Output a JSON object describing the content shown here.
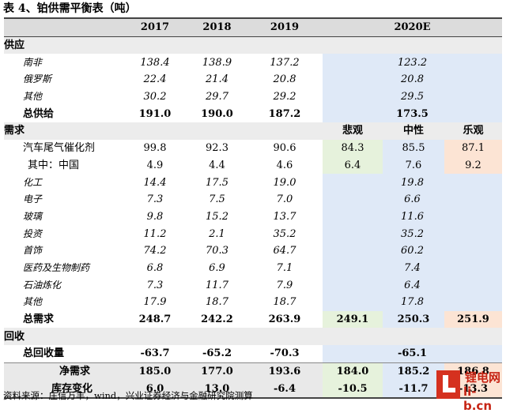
{
  "title": "表 4、铂供需平衡表（吨）",
  "columns": [
    "",
    "2017",
    "2018",
    "2019",
    "2020E"
  ],
  "supply": {
    "header": "供应",
    "rows": [
      {
        "label": "南非",
        "v2017": "138.4",
        "v2018": "138.9",
        "v2019": "137.2",
        "v2020": "123.2"
      },
      {
        "label": "俄罗斯",
        "v2017": "22.4",
        "v2018": "21.4",
        "v2019": "20.8",
        "v2020": "20.8"
      },
      {
        "label": "其他",
        "v2017": "30.2",
        "v2018": "29.7",
        "v2019": "29.2",
        "v2020": "29.5"
      }
    ],
    "total": {
      "label": "总供给",
      "v2017": "191.0",
      "v2018": "190.0",
      "v2019": "187.2",
      "v2020": "173.5"
    }
  },
  "demand": {
    "header": "需求",
    "scenario_labels": {
      "bear": "悲观",
      "neutral": "中性",
      "bull": "乐观"
    },
    "auto": {
      "label": "汽车尾气催化剂",
      "v2017": "99.8",
      "v2018": "92.3",
      "v2019": "90.6",
      "bear": "84.3",
      "neutral": "85.5",
      "bull": "87.1"
    },
    "china": {
      "label": "其中：中国",
      "v2017": "4.9",
      "v2018": "4.4",
      "v2019": "4.6",
      "bear": "6.4",
      "neutral": "7.6",
      "bull": "9.2"
    },
    "rows": [
      {
        "label": "化工",
        "v2017": "14.4",
        "v2018": "17.5",
        "v2019": "19.0",
        "v2020": "19.8"
      },
      {
        "label": "电子",
        "v2017": "7.3",
        "v2018": "7.5",
        "v2019": "7.0",
        "v2020": "6.6"
      },
      {
        "label": "玻璃",
        "v2017": "9.8",
        "v2018": "15.2",
        "v2019": "13.7",
        "v2020": "11.6"
      },
      {
        "label": "投资",
        "v2017": "11.2",
        "v2018": "2.1",
        "v2019": "35.2",
        "v2020": "35.2"
      },
      {
        "label": "首饰",
        "v2017": "74.2",
        "v2018": "70.3",
        "v2019": "64.7",
        "v2020": "60.2"
      },
      {
        "label": "医药及生物制药",
        "v2017": "6.8",
        "v2018": "6.9",
        "v2019": "7.1",
        "v2020": "7.4"
      },
      {
        "label": "石油炼化",
        "v2017": "7.3",
        "v2018": "11.7",
        "v2019": "7.9",
        "v2020": "6.4"
      },
      {
        "label": "其他",
        "v2017": "17.9",
        "v2018": "18.7",
        "v2019": "18.7",
        "v2020": "17.8"
      }
    ],
    "total": {
      "label": "总需求",
      "v2017": "248.7",
      "v2018": "242.2",
      "v2019": "263.9",
      "bear": "249.1",
      "neutral": "250.3",
      "bull": "251.9"
    }
  },
  "recycle": {
    "header": "回收",
    "total": {
      "label": "总回收量",
      "v2017": "-63.7",
      "v2018": "-65.2",
      "v2019": "-70.3",
      "v2020": "-65.1"
    }
  },
  "net_demand": {
    "label": "净需求",
    "v2017": "185.0",
    "v2018": "177.0",
    "v2019": "193.6",
    "bear": "184.0",
    "neutral": "185.2",
    "bull": "186.8"
  },
  "stock_change": {
    "label": "库存变化",
    "v2017": "6.0",
    "v2018": "13.0",
    "v2019": "-6.4",
    "bear": "-10.5",
    "neutral": "-11.7",
    "bull": "-13.3"
  },
  "source": "资料来源：庄信万丰，wind，兴业证券经济与金融研究院测算",
  "watermark": {
    "line1": "锂电网",
    "line2": "li-b.cn"
  },
  "colors": {
    "blue": "#dfe9f7",
    "green": "#e6f2dc",
    "peach": "#fce4d4",
    "gray": "#e9e9e9"
  }
}
